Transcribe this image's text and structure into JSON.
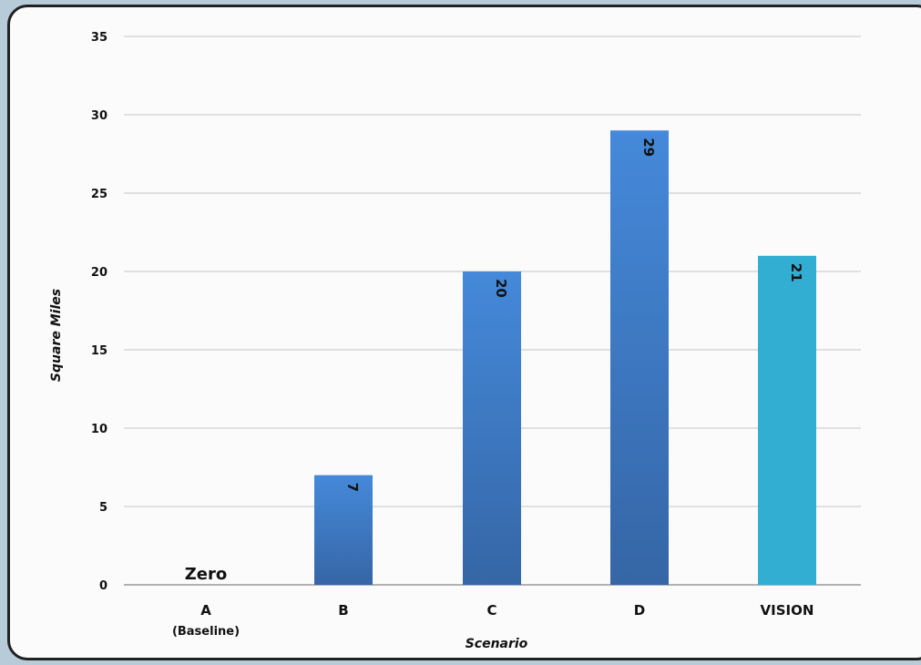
{
  "chart_data": {
    "type": "bar",
    "categories": [
      "A",
      "B",
      "C",
      "D",
      "VISION"
    ],
    "category_sublabels": [
      "(Baseline)",
      "",
      "",
      "",
      ""
    ],
    "values": [
      0,
      7,
      20,
      29,
      21
    ],
    "data_labels": [
      "Zero",
      "7",
      "20",
      "29",
      "21"
    ],
    "xlabel": "Scenario",
    "ylabel": "Square Miles",
    "ylim": [
      0,
      35
    ],
    "yticks": [
      0,
      5,
      10,
      15,
      20,
      25,
      30,
      35
    ],
    "grid": true,
    "legend": "none",
    "colors": {
      "bar_top": "#4589da",
      "bar_bottom": "#3566a6",
      "highlight_bar": "#33aed3",
      "gridline": "#cfcfcf",
      "axis": "#9a9a9a"
    }
  }
}
